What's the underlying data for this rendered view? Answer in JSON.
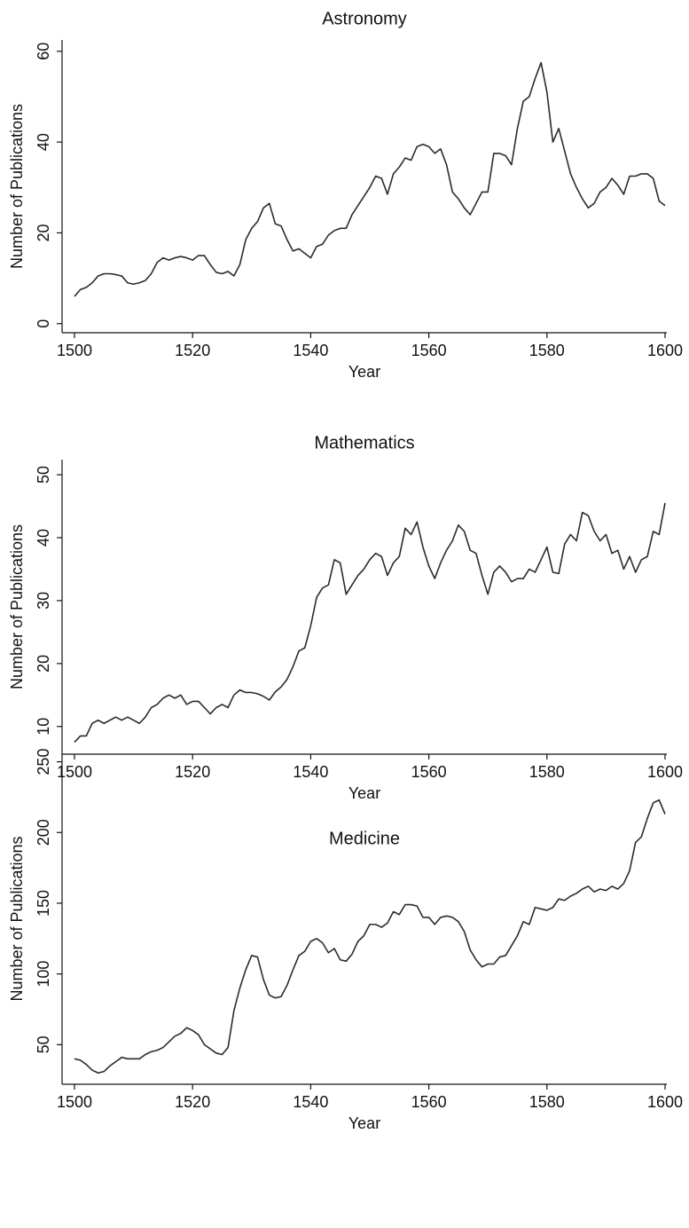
{
  "chart_data": [
    {
      "type": "line",
      "title": "Astronomy",
      "xlabel": "Year",
      "ylabel": "Number of Publications",
      "x": [
        1500,
        1501,
        1502,
        1503,
        1504,
        1505,
        1506,
        1507,
        1508,
        1509,
        1510,
        1511,
        1512,
        1513,
        1514,
        1515,
        1516,
        1517,
        1518,
        1519,
        1520,
        1521,
        1522,
        1523,
        1524,
        1525,
        1526,
        1527,
        1528,
        1529,
        1530,
        1531,
        1532,
        1533,
        1534,
        1535,
        1536,
        1537,
        1538,
        1539,
        1540,
        1541,
        1542,
        1543,
        1544,
        1545,
        1546,
        1547,
        1548,
        1549,
        1550,
        1551,
        1552,
        1553,
        1554,
        1555,
        1556,
        1557,
        1558,
        1559,
        1560,
        1561,
        1562,
        1563,
        1564,
        1565,
        1566,
        1567,
        1568,
        1569,
        1570,
        1571,
        1572,
        1573,
        1574,
        1575,
        1576,
        1577,
        1578,
        1579,
        1580,
        1581,
        1582,
        1583,
        1584,
        1585,
        1586,
        1587,
        1588,
        1589,
        1590,
        1591,
        1592,
        1593,
        1594,
        1595,
        1596,
        1597,
        1598,
        1599,
        1600
      ],
      "series": [
        {
          "name": "Astronomy",
          "color": "#2b2b2b",
          "values": [
            6,
            7.5,
            8,
            9,
            10.5,
            11,
            11,
            10.8,
            10.5,
            9,
            8.7,
            9,
            9.5,
            11,
            13.5,
            14.5,
            14,
            14.5,
            14.8,
            14.5,
            14,
            15,
            15,
            13,
            11.3,
            11,
            11.5,
            10.5,
            13,
            18.5,
            21,
            22.5,
            25.5,
            26.5,
            22,
            21.5,
            18.5,
            16,
            16.5,
            15.5,
            14.5,
            17,
            17.5,
            19.5,
            20.5,
            21,
            21,
            24,
            26,
            28,
            30,
            32.5,
            32,
            28.5,
            33,
            34.5,
            36.5,
            36,
            39,
            39.5,
            39,
            37.5,
            38.5,
            35,
            29,
            27.5,
            25.5,
            24,
            26.5,
            29,
            29,
            37.5,
            37.5,
            37,
            35,
            43,
            49,
            50,
            54,
            57.5,
            51,
            40,
            43,
            38,
            33,
            30,
            27.5,
            25.5,
            26.5,
            29,
            30,
            32,
            30.5,
            28.5,
            32.5,
            32.5,
            33,
            33,
            32,
            27,
            26
          ]
        }
      ],
      "xlim": [
        1497.9,
        1600.3
      ],
      "xticks": [
        1500,
        1520,
        1540,
        1560,
        1580,
        1600
      ],
      "ylim": [
        -2,
        62.5
      ],
      "yticks": [
        0,
        20,
        40,
        60
      ]
    },
    {
      "type": "line",
      "title": "Mathematics",
      "xlabel": "Year",
      "ylabel": "Number of Publications",
      "x": [
        1500,
        1501,
        1502,
        1503,
        1504,
        1505,
        1506,
        1507,
        1508,
        1509,
        1510,
        1511,
        1512,
        1513,
        1514,
        1515,
        1516,
        1517,
        1518,
        1519,
        1520,
        1521,
        1522,
        1523,
        1524,
        1525,
        1526,
        1527,
        1528,
        1529,
        1530,
        1531,
        1532,
        1533,
        1534,
        1535,
        1536,
        1537,
        1538,
        1539,
        1540,
        1541,
        1542,
        1543,
        1544,
        1545,
        1546,
        1547,
        1548,
        1549,
        1550,
        1551,
        1552,
        1553,
        1554,
        1555,
        1556,
        1557,
        1558,
        1559,
        1560,
        1561,
        1562,
        1563,
        1564,
        1565,
        1566,
        1567,
        1568,
        1569,
        1570,
        1571,
        1572,
        1573,
        1574,
        1575,
        1576,
        1577,
        1578,
        1579,
        1580,
        1581,
        1582,
        1583,
        1584,
        1585,
        1586,
        1587,
        1588,
        1589,
        1590,
        1591,
        1592,
        1593,
        1594,
        1595,
        1596,
        1597,
        1598,
        1599,
        1600
      ],
      "series": [
        {
          "name": "Mathematics",
          "color": "#2b2b2b",
          "values": [
            7.5,
            8.5,
            8.5,
            10.5,
            11,
            10.5,
            11,
            11.5,
            11,
            11.5,
            11,
            10.5,
            11.5,
            13,
            13.5,
            14.5,
            15,
            14.5,
            15,
            13.5,
            14,
            14,
            13,
            12,
            13,
            13.5,
            13,
            15,
            15.8,
            15.4,
            15.4,
            15.2,
            14.8,
            14.2,
            15.5,
            16.3,
            17.5,
            19.5,
            22,
            22.5,
            26,
            30.5,
            32,
            32.5,
            36.5,
            36,
            31,
            32.5,
            34,
            35,
            36.5,
            37.5,
            37,
            34,
            36,
            37,
            41.5,
            40.5,
            42.5,
            38.5,
            35.5,
            33.5,
            36,
            38,
            39.5,
            42,
            41,
            38,
            37.5,
            34,
            31,
            34.5,
            35.5,
            34.5,
            33,
            33.5,
            33.5,
            35,
            34.5,
            36.5,
            38.5,
            34.5,
            34.3,
            39,
            40.5,
            39.5,
            44,
            43.5,
            41,
            39.5,
            40.5,
            37.5,
            38,
            35,
            37,
            34.5,
            36.5,
            37,
            41,
            40.5,
            45.5
          ]
        }
      ],
      "xlim": [
        1497.9,
        1600.3
      ],
      "xticks": [
        1500,
        1520,
        1540,
        1560,
        1580,
        1600
      ],
      "ylim": [
        5.6,
        52.4
      ],
      "yticks": [
        10,
        20,
        30,
        40,
        50
      ]
    },
    {
      "type": "line",
      "title": "Medicine",
      "xlabel": "Year",
      "ylabel": "Number of Publications",
      "x": [
        1500,
        1501,
        1502,
        1503,
        1504,
        1505,
        1506,
        1507,
        1508,
        1509,
        1510,
        1511,
        1512,
        1513,
        1514,
        1515,
        1516,
        1517,
        1518,
        1519,
        1520,
        1521,
        1522,
        1523,
        1524,
        1525,
        1526,
        1527,
        1528,
        1529,
        1530,
        1531,
        1532,
        1533,
        1534,
        1535,
        1536,
        1537,
        1538,
        1539,
        1540,
        1541,
        1542,
        1543,
        1544,
        1545,
        1546,
        1547,
        1548,
        1549,
        1550,
        1551,
        1552,
        1553,
        1554,
        1555,
        1556,
        1557,
        1558,
        1559,
        1560,
        1561,
        1562,
        1563,
        1564,
        1565,
        1566,
        1567,
        1568,
        1569,
        1570,
        1571,
        1572,
        1573,
        1574,
        1575,
        1576,
        1577,
        1578,
        1579,
        1580,
        1581,
        1582,
        1583,
        1584,
        1585,
        1586,
        1587,
        1588,
        1589,
        1590,
        1591,
        1592,
        1593,
        1594,
        1595,
        1596,
        1597,
        1598,
        1599,
        1600
      ],
      "series": [
        {
          "name": "Medicine",
          "color": "#2b2b2b",
          "values": [
            40,
            39,
            36,
            32,
            30,
            31,
            35,
            38,
            41,
            40,
            40,
            40,
            43,
            45,
            46,
            48,
            52,
            56,
            58,
            62,
            60,
            57,
            50,
            47,
            44,
            43,
            48,
            74,
            90,
            103,
            113,
            112,
            96,
            85,
            83,
            84,
            92,
            103,
            113,
            116,
            123,
            125,
            122,
            115,
            118,
            110,
            109,
            114,
            123,
            127,
            135,
            135,
            133,
            136,
            144,
            142,
            149,
            149,
            148,
            140,
            140,
            135,
            140,
            141,
            140,
            137,
            130,
            117,
            110,
            105,
            107,
            107,
            112,
            113,
            120,
            127,
            137,
            135,
            147,
            146,
            145,
            147,
            153,
            152,
            155,
            157,
            160,
            162,
            158,
            160,
            159,
            162,
            160,
            164,
            173,
            193,
            197,
            210,
            221,
            223,
            213
          ]
        }
      ],
      "xlim": [
        1497.9,
        1600.3
      ],
      "xticks": [
        1500,
        1520,
        1540,
        1560,
        1580,
        1600
      ],
      "ylim": [
        22,
        256
      ],
      "yticks": [
        50,
        100,
        150,
        200,
        250
      ]
    }
  ]
}
